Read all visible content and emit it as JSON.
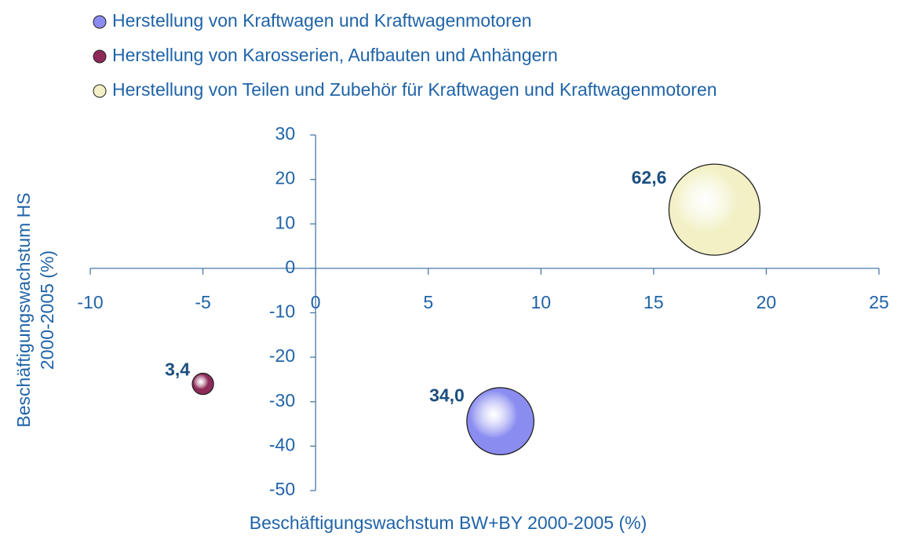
{
  "chart_data": {
    "type": "bubble",
    "x_label": "Beschäftigungswachstum BW+BY 2000-2005 (%)",
    "y_label": [
      "Beschäftigungswachstum HS",
      "2000-2005 (%)"
    ],
    "xlim": [
      -10,
      25
    ],
    "xticks": [
      -10,
      -5,
      0,
      5,
      10,
      15,
      20,
      25
    ],
    "ylim": [
      -50,
      30
    ],
    "yticks": [
      -50,
      -40,
      -30,
      -20,
      -10,
      0,
      10,
      20,
      30
    ],
    "series": [
      {
        "name": "Herstellung von Kraftwagen und Kraftwagenmotoren",
        "color": "#8a8cf0",
        "x": [
          8.2
        ],
        "y": [
          -34.4
        ],
        "size": [
          34.0
        ],
        "value_labels": [
          "34,0"
        ]
      },
      {
        "name": "Herstellung von Karosserien, Aufbauten und Anhängern",
        "color": "#8e2a58",
        "x": [
          -5
        ],
        "y": [
          -26
        ],
        "size": [
          3.4
        ],
        "value_labels": [
          "3,4"
        ]
      },
      {
        "name": "Herstellung von Teilen und Zubehör für Kraftwagen und Kraftwagenmotoren",
        "color": "#f2f0c4",
        "x": [
          17.7
        ],
        "y": [
          13.2
        ],
        "size": [
          62.6
        ],
        "value_labels": [
          "62,6"
        ]
      }
    ]
  }
}
